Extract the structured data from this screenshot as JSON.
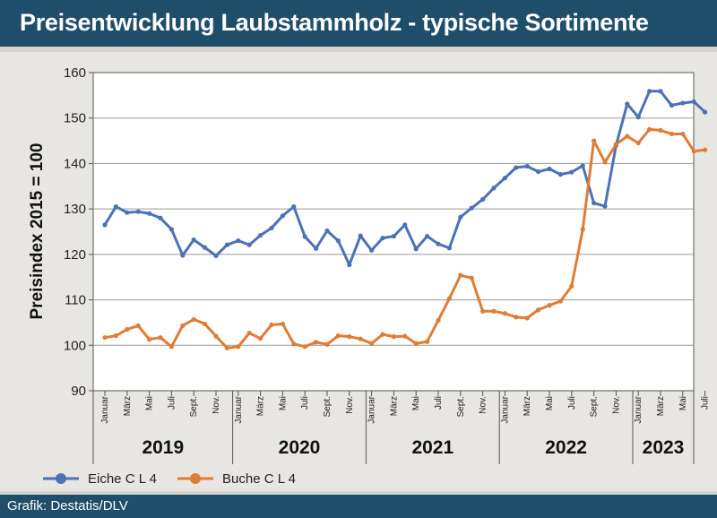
{
  "header": {
    "title": "Preisentwicklung Laubstammholz - typische Sortimente"
  },
  "footer": {
    "credit": "Grafik: Destatis/DLV"
  },
  "chart_data": {
    "type": "line",
    "title": "Preisentwicklung Laubstammholz - typische Sortimente",
    "ylabel": "Preisindex 2015 = 100",
    "xlabel": "",
    "ylim": [
      90,
      160
    ],
    "yticks": [
      90,
      100,
      110,
      120,
      130,
      140,
      150,
      160
    ],
    "grid": true,
    "legend_position": "bottom-left",
    "month_labels": [
      "Januar",
      "März",
      "Mai",
      "Juli",
      "Sept.",
      "Nov."
    ],
    "years": [
      "2019",
      "2020",
      "2021",
      "2022",
      "2023"
    ],
    "start": "2019-01",
    "series": [
      {
        "name": "Eiche C L 4",
        "color": "#4a72b5",
        "values": [
          126.5,
          130.5,
          129.2,
          129.4,
          129,
          128,
          125.5,
          119.8,
          123.2,
          121.5,
          119.7,
          122.1,
          123,
          122.1,
          124.2,
          125.8,
          128.5,
          130.5,
          123.9,
          121.3,
          125.2,
          123,
          117.7,
          124.1,
          120.9,
          123.6,
          124,
          126.5,
          121.2,
          124,
          122.3,
          121.4,
          128.2,
          130.2,
          132.1,
          134.6,
          136.8,
          139.1,
          139.4,
          138.2,
          138.8,
          137.6,
          138.1,
          139.5,
          131.3,
          130.6,
          144,
          153.1,
          150.2,
          155.9,
          155.9,
          152.8,
          153.3,
          153.6,
          151.3
        ]
      },
      {
        "name": "Buche C L 4",
        "color": "#e07c36",
        "values": [
          101.7,
          102.1,
          103.5,
          104.3,
          101.3,
          101.7,
          99.7,
          104.3,
          105.7,
          104.7,
          102,
          99.4,
          99.7,
          102.7,
          101.5,
          104.5,
          104.7,
          100.3,
          99.7,
          100.7,
          100.2,
          102.1,
          101.9,
          101.4,
          100.4,
          102.4,
          101.9,
          102,
          100.4,
          100.8,
          105.5,
          110.3,
          115.4,
          114.8,
          107.5,
          107.5,
          107,
          106.2,
          106,
          107.8,
          108.8,
          109.7,
          113,
          125.5,
          145,
          140.3,
          144.2,
          146,
          144.5,
          147.5,
          147.3,
          146.5,
          146.5,
          142.7,
          143
        ]
      }
    ]
  }
}
